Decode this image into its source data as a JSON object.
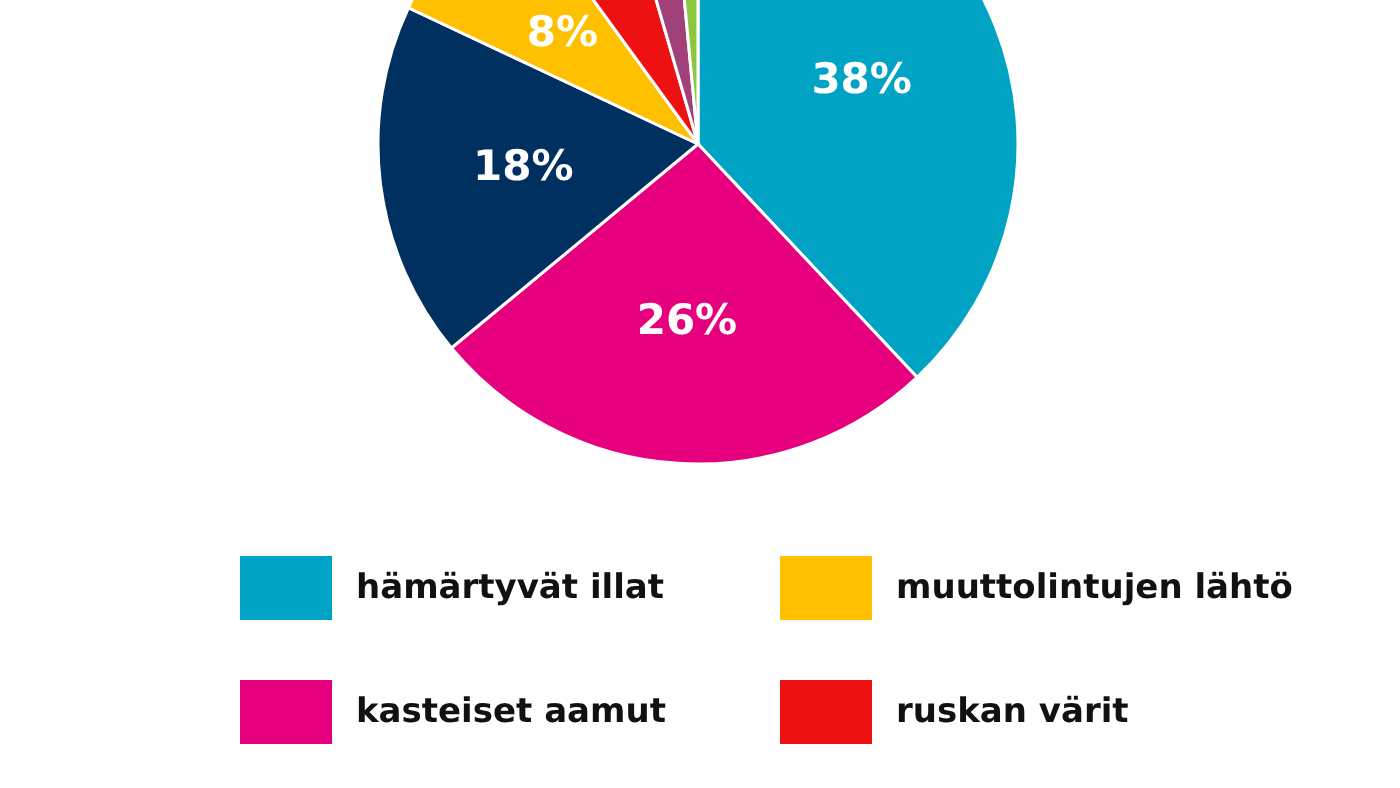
{
  "chart_data": {
    "type": "pie",
    "categories": [
      "hämärtyvät illat",
      "kasteiset aamut",
      null,
      "muuttolintujen lähtö",
      "ruskan värit",
      null,
      null
    ],
    "values": [
      38,
      26,
      18,
      8,
      5.5,
      3,
      1.5
    ],
    "colors": [
      "#00a3c4",
      "#e6007e",
      "#003060",
      "#ffc000",
      "#ee1111",
      "#a0417a",
      "#8dc63f"
    ],
    "value_labels": [
      "38%",
      "26%",
      "18%",
      "8%",
      null,
      null,
      null
    ],
    "legend": "bottom"
  }
}
